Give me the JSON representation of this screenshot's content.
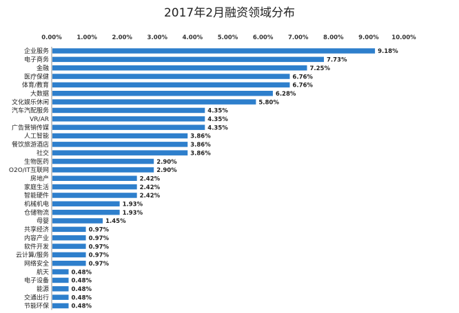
{
  "chart_data": {
    "type": "bar",
    "orientation": "horizontal",
    "title": "2017年2月融资领域分布",
    "xlabel": "",
    "ylabel": "",
    "xlim": [
      0,
      10
    ],
    "x_ticks": [
      "0.00%",
      "1.00%",
      "2.00%",
      "3.00%",
      "4.00%",
      "5.00%",
      "6.00%",
      "7.00%",
      "8.00%",
      "9.00%",
      "10.00%"
    ],
    "axis_position": "top",
    "grid": false,
    "bar_color": "#2E7FCC",
    "categories": [
      "企业服务",
      "电子商务",
      "金融",
      "医疗保健",
      "体育/教育",
      "大数据",
      "文化娱乐休闲",
      "汽车汽配服务",
      "VR/AR",
      "广告营销传媒",
      "人工智能",
      "餐饮旅游酒店",
      "社交",
      "生物医药",
      "O2O/IT互联网",
      "房地产",
      "家庭生活",
      "智能硬件",
      "机械机电",
      "仓储物流",
      "母婴",
      "共享经济",
      "内容产业",
      "软件开发",
      "云计算/服务",
      "网络安全",
      "航天",
      "电子设备",
      "能源",
      "交通出行",
      "节能环保"
    ],
    "values": [
      9.18,
      7.73,
      7.25,
      6.76,
      6.76,
      6.28,
      5.8,
      4.35,
      4.35,
      4.35,
      3.86,
      3.86,
      3.86,
      2.9,
      2.9,
      2.42,
      2.42,
      2.42,
      1.93,
      1.93,
      1.45,
      0.97,
      0.97,
      0.97,
      0.97,
      0.97,
      0.48,
      0.48,
      0.48,
      0.48,
      0.48
    ],
    "value_labels": [
      "9.18%",
      "7.73%",
      "7.25%",
      "6.76%",
      "6.76%",
      "6.28%",
      "5.80%",
      "4.35%",
      "4.35%",
      "4.35%",
      "3.86%",
      "3.86%",
      "3.86%",
      "2.90%",
      "2.90%",
      "2.42%",
      "2.42%",
      "2.42%",
      "1.93%",
      "1.93%",
      "1.45%",
      "0.97%",
      "0.97%",
      "0.97%",
      "0.97%",
      "0.97%",
      "0.48%",
      "0.48%",
      "0.48%",
      "0.48%",
      "0.48%"
    ]
  }
}
